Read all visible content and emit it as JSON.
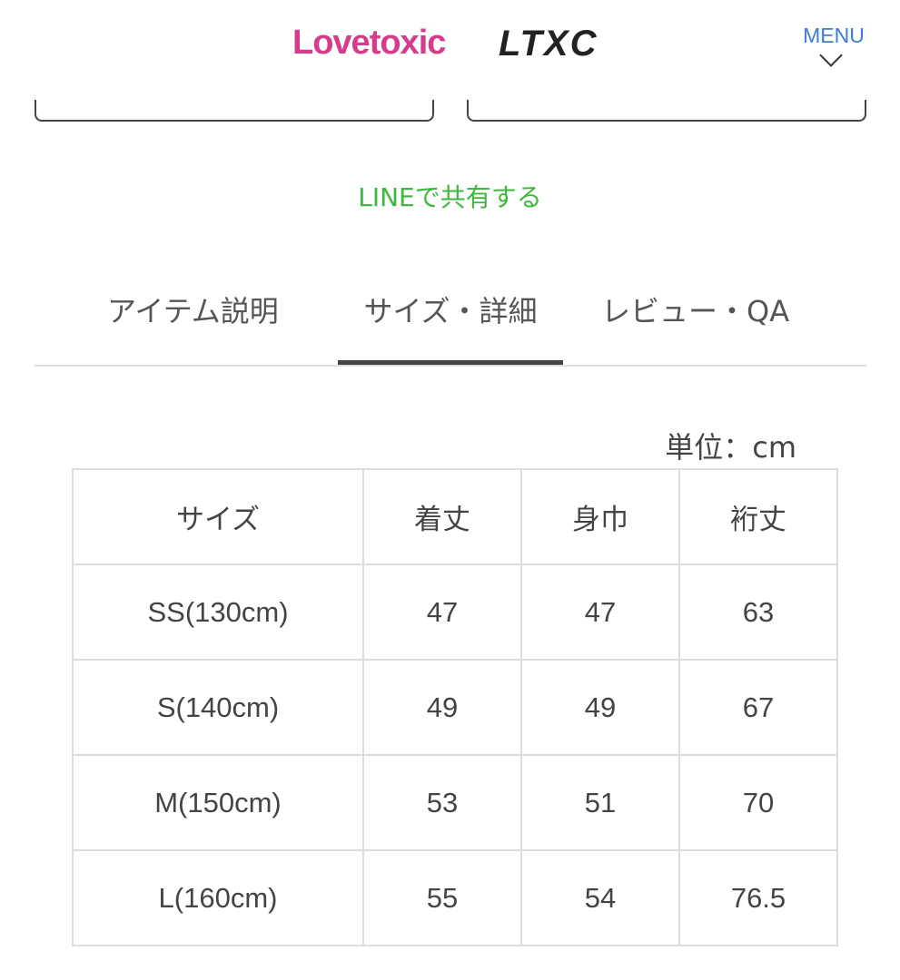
{
  "header": {
    "logo_primary": "Lovetoxic",
    "logo_secondary": "LTXC",
    "menu_label": "MENU"
  },
  "share": {
    "line_label": "LINEで共有する",
    "line_color": "#3cb93c"
  },
  "tabs": [
    {
      "label": "アイテム説明"
    },
    {
      "label": "サイズ・詳細",
      "active": true
    },
    {
      "label": "レビュー・QA"
    }
  ],
  "size_table": {
    "unit": "単位：cm",
    "headers": [
      "サイズ",
      "着丈",
      "身巾",
      "裄丈"
    ],
    "rows": [
      [
        "SS(130cm)",
        "47",
        "47",
        "63"
      ],
      [
        "S(140cm)",
        "49",
        "49",
        "67"
      ],
      [
        "M(150cm)",
        "53",
        "51",
        "70"
      ],
      [
        "L(160cm)",
        "55",
        "54",
        "76.5"
      ]
    ]
  }
}
